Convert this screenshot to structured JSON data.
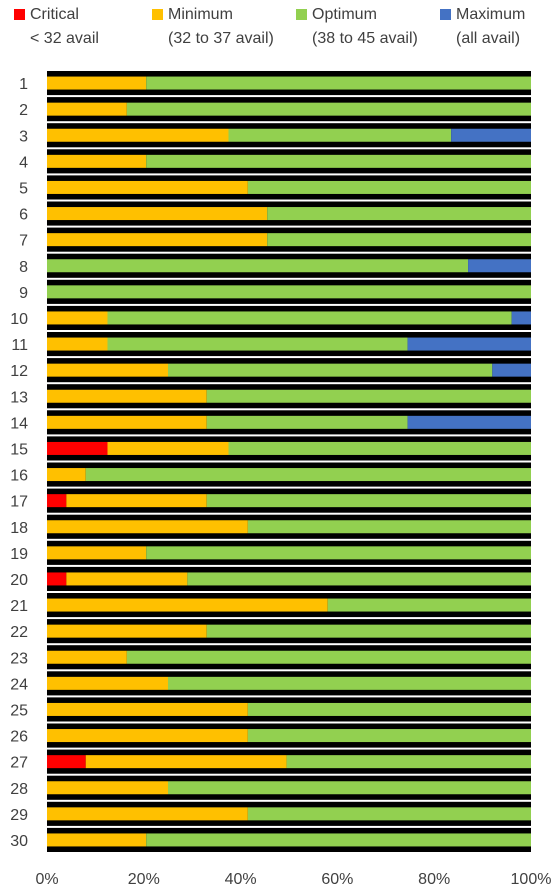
{
  "chart_data": {
    "type": "bar",
    "orientation": "horizontal",
    "stacked": true,
    "percent_stacked": true,
    "legend": "top",
    "grid": false,
    "categories": [
      "1",
      "2",
      "3",
      "4",
      "5",
      "6",
      "7",
      "8",
      "9",
      "10",
      "11",
      "12",
      "13",
      "14",
      "15",
      "16",
      "17",
      "18",
      "19",
      "20",
      "21",
      "22",
      "23",
      "24",
      "25",
      "26",
      "27",
      "28",
      "29",
      "30"
    ],
    "series": [
      {
        "name": "Critical",
        "label_line2": "< 32 avail",
        "color": "#ff0000",
        "values": [
          0,
          0,
          0,
          0,
          0,
          0,
          0,
          0,
          0,
          0,
          0,
          0,
          0,
          0,
          12.5,
          0,
          4,
          0,
          0,
          4,
          0,
          0,
          0,
          0,
          0,
          0,
          8,
          0,
          0,
          0
        ]
      },
      {
        "name": "Minimum",
        "label_line2": "(32 to 37 avail)",
        "color": "#ffc000",
        "values": [
          20.5,
          16.5,
          37.5,
          20.5,
          41.5,
          45.5,
          45.5,
          0,
          0,
          12.5,
          12.5,
          25,
          33,
          33,
          25,
          8,
          29,
          41.5,
          20.5,
          25,
          58,
          33,
          16.5,
          25,
          41.5,
          41.5,
          41.5,
          25,
          41.5,
          20.5
        ]
      },
      {
        "name": "Optimum",
        "label_line2": "(38 to 45 avail)",
        "color": "#92d050",
        "values": [
          79.5,
          83.5,
          46,
          79.5,
          58.5,
          54.5,
          54.5,
          87,
          100,
          83.5,
          62,
          67,
          67,
          41.5,
          62.5,
          92,
          67,
          58.5,
          79.5,
          71,
          42,
          67,
          83.5,
          75,
          58.5,
          58.5,
          50.5,
          75,
          58.5,
          79.5
        ]
      },
      {
        "name": "Maximum",
        "label_line2": "(all avail)",
        "color": "#4472c4",
        "values": [
          0,
          0,
          16.5,
          0,
          0,
          0,
          0,
          13,
          0,
          4,
          25.5,
          8,
          0,
          25.5,
          0,
          0,
          0,
          0,
          0,
          0,
          0,
          0,
          0,
          0,
          0,
          0,
          0,
          0,
          0,
          0
        ]
      }
    ],
    "xlim": [
      0,
      100
    ],
    "x_ticks": [
      "0%",
      "20%",
      "40%",
      "60%",
      "80%",
      "100%"
    ]
  }
}
